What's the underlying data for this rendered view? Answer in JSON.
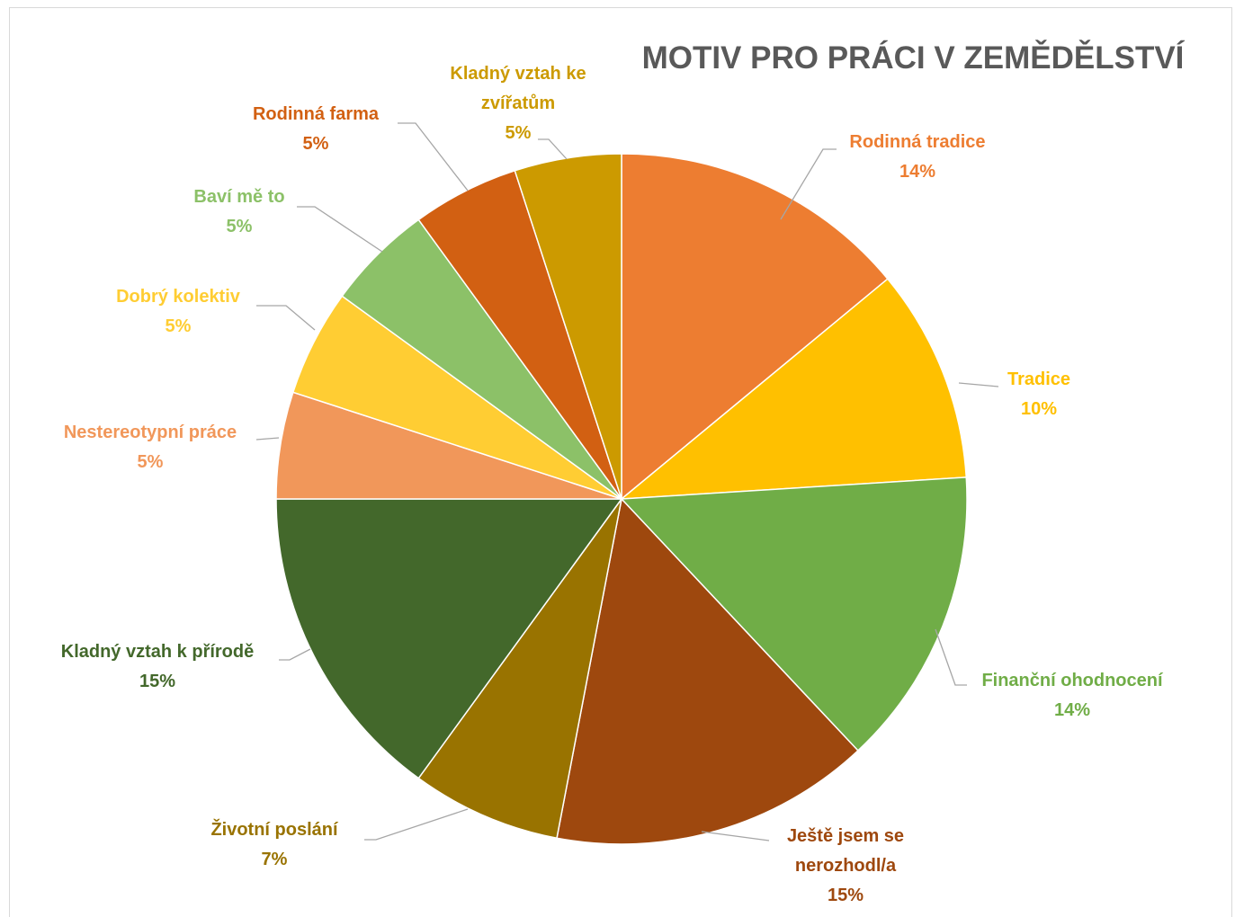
{
  "chart_data": {
    "type": "pie",
    "title": "MOTIV PRO PRÁCI V ZEMĚDĚLSTVÍ",
    "categories": [
      "Rodinná tradice",
      "Tradice",
      "Finanční ohodnocení",
      "Ještě jsem se nerozhodl/a",
      "Životní poslání",
      "Kladný vztah k přírodě",
      "Nestereotypní práce",
      "Dobrý kolektiv",
      "Baví mě to",
      "Rodinná farma",
      "Kladný vztah ke zvířatům"
    ],
    "values": [
      14,
      10,
      14,
      15,
      7,
      15,
      5,
      5,
      5,
      5,
      5
    ],
    "value_labels": [
      "14%",
      "10%",
      "14%",
      "15%",
      "7%",
      "15%",
      "5%",
      "5%",
      "5%",
      "5%",
      "5%"
    ],
    "colors": [
      "#ED7D31",
      "#FFC000",
      "#70AD47",
      "#9E480E",
      "#997300",
      "#43682B",
      "#F1975A",
      "#FFCD33",
      "#8CC168",
      "#D26012",
      "#CC9A00"
    ]
  }
}
